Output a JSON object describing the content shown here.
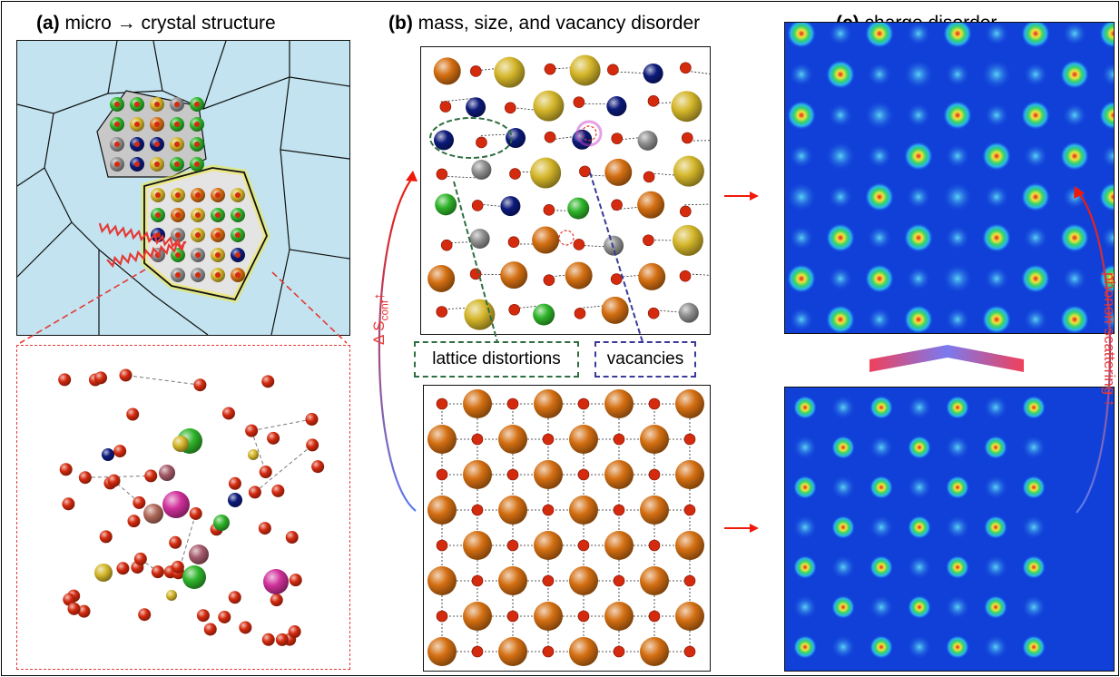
{
  "panels": {
    "a": {
      "letter": "(a)",
      "title": "micro → crystal structure"
    },
    "b": {
      "letter": "(b)",
      "title": "mass, size, and vacancy disorder"
    },
    "c": {
      "letter": "(c)",
      "title": "charge disorder"
    }
  },
  "callouts": {
    "lattice": "lattice distortions",
    "vacancies": "vacancies"
  },
  "side_labels": {
    "entropy_prefix": "Δ S",
    "entropy_sub": "conf",
    "entropy_arrow": "↑",
    "phonon": "phonon scattering ↑"
  },
  "colors": {
    "grain_fill": "#c2e3ef",
    "highlight": "#f2ea3a",
    "dash_red": "#e53935",
    "oxygen": "#d42a0e",
    "cation_orange": "#d46f12",
    "green": "#2fb42a",
    "navy": "#0c1a7a",
    "gold": "#d4b62a",
    "gray": "#8f8f8f",
    "arrow_red": "#f01a0a",
    "arrow_blue": "#5b7cf0",
    "dist_green": "#2f6e40",
    "vac_blue": "#3a3a9a"
  }
}
